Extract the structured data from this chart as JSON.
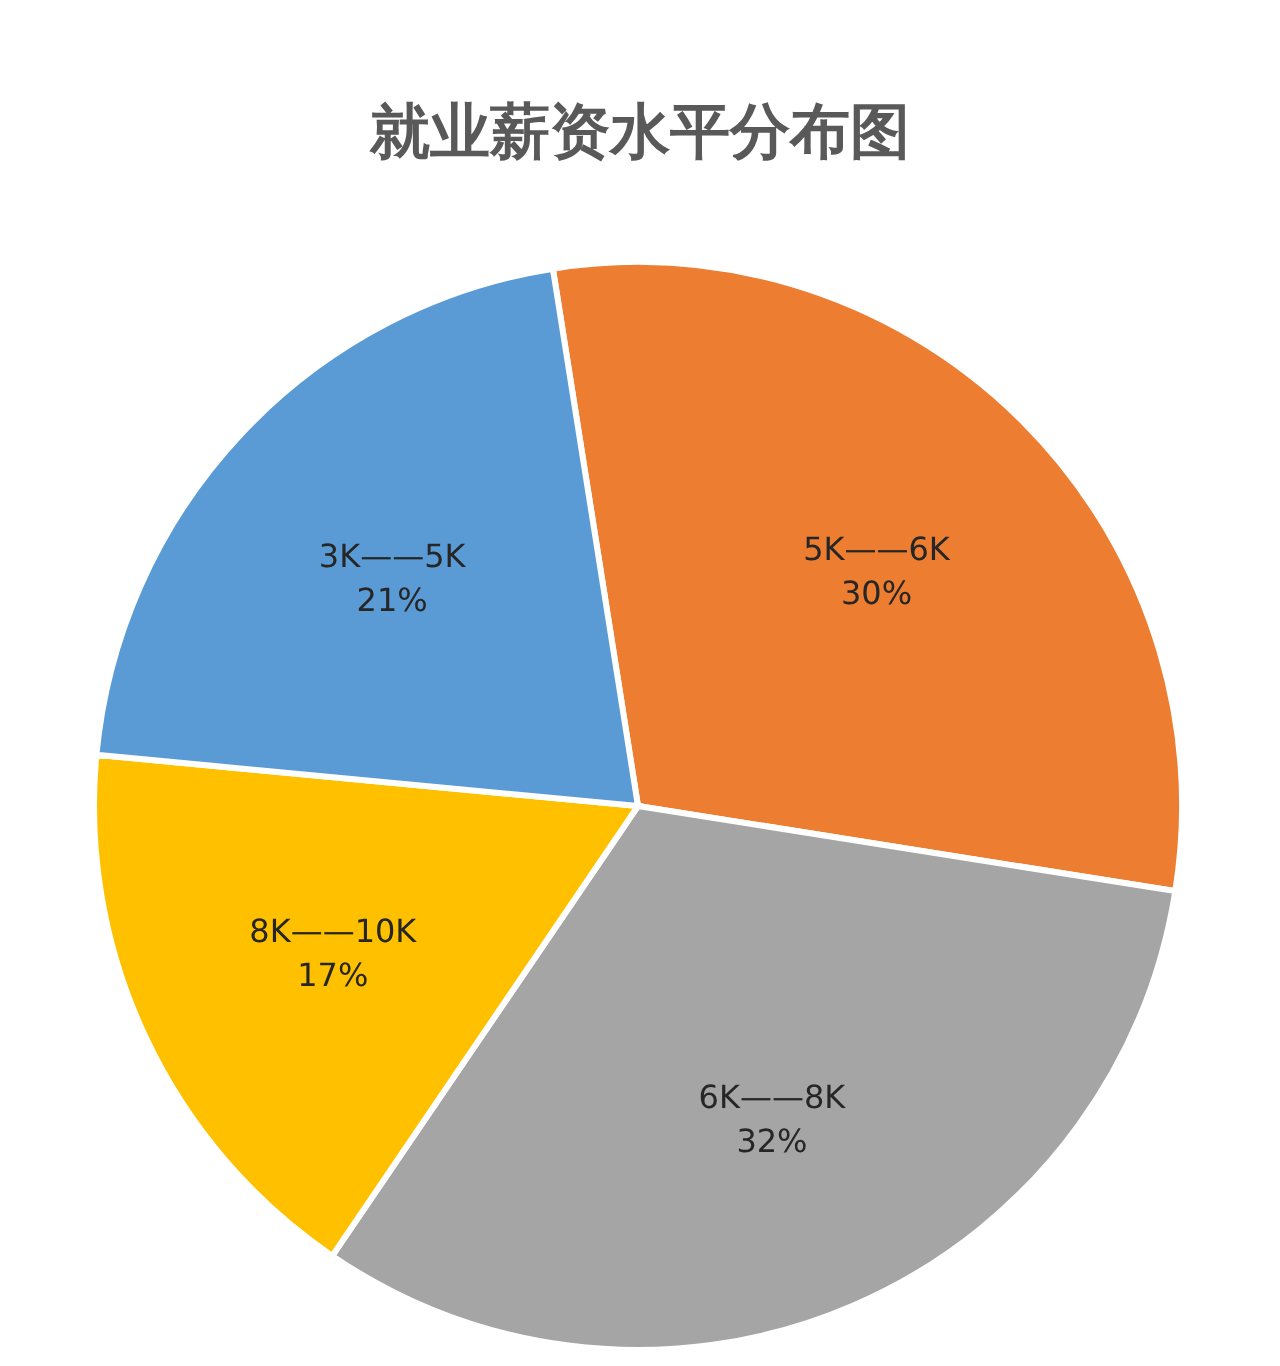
{
  "chart_data": {
    "type": "pie",
    "title": "就业薪资水平分布图",
    "categories": [
      "5K——6K",
      "6K——8K",
      "8K——10K",
      "3K——5K"
    ],
    "values": [
      30,
      32,
      17,
      21
    ],
    "colors": [
      "#ed7d31",
      "#a5a5a5",
      "#ffc000",
      "#5b9bd5"
    ],
    "value_labels": [
      "30%",
      "32%",
      "17%",
      "21%"
    ],
    "legend": false
  }
}
